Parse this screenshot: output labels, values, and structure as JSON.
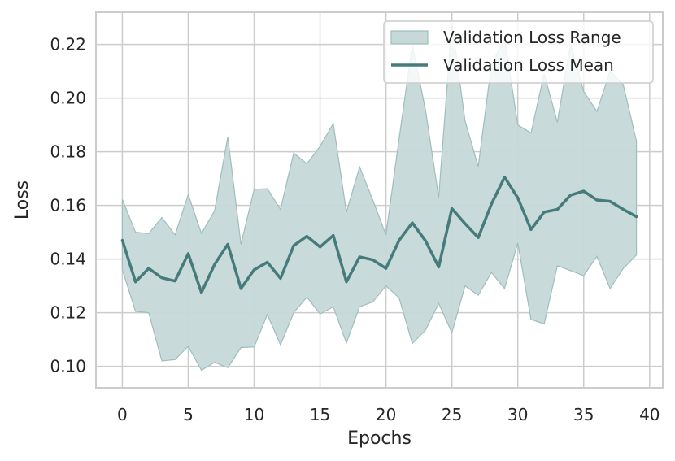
{
  "chart_data": {
    "type": "area",
    "title": "",
    "xlabel": "Epochs",
    "ylabel": "Loss",
    "xlim": [
      -2,
      41
    ],
    "ylim": [
      0.092,
      0.232
    ],
    "xticks": [
      0,
      5,
      10,
      15,
      20,
      25,
      30,
      35,
      40
    ],
    "yticks": [
      0.1,
      0.12,
      0.14,
      0.16,
      0.18,
      0.2,
      0.22
    ],
    "grid": true,
    "legend_position": "upper-right",
    "colors": {
      "line": "#457b7a",
      "fill": "#c6d8d8",
      "fill_edge": "#9fbdbd",
      "grid": "#cccccc",
      "spine": "#cccccc"
    },
    "x": [
      0,
      1,
      2,
      3,
      4,
      5,
      6,
      7,
      8,
      9,
      10,
      11,
      12,
      13,
      14,
      15,
      16,
      17,
      18,
      19,
      20,
      21,
      22,
      23,
      24,
      25,
      26,
      27,
      28,
      29,
      30,
      31,
      32,
      33,
      34,
      35,
      36,
      37,
      38,
      39
    ],
    "series": [
      {
        "name": "Validation Loss Mean",
        "kind": "line",
        "values": [
          0.147,
          0.1315,
          0.1365,
          0.133,
          0.1318,
          0.142,
          0.1275,
          0.138,
          0.1455,
          0.129,
          0.136,
          0.1388,
          0.1328,
          0.145,
          0.1485,
          0.1445,
          0.1488,
          0.1315,
          0.1408,
          0.1397,
          0.1365,
          0.147,
          0.1535,
          0.1468,
          0.137,
          0.1588,
          0.1532,
          0.148,
          0.1605,
          0.1705,
          0.1628,
          0.151,
          0.1575,
          0.1585,
          0.1638,
          0.1653,
          0.162,
          0.1615,
          0.1585,
          0.1558
        ]
      },
      {
        "name": "Validation Loss Range",
        "kind": "band",
        "lower": [
          0.136,
          0.1205,
          0.12,
          0.102,
          0.1025,
          0.1075,
          0.0985,
          0.1015,
          0.0995,
          0.107,
          0.1072,
          0.1193,
          0.108,
          0.12,
          0.1258,
          0.1195,
          0.1222,
          0.1087,
          0.1222,
          0.124,
          0.13,
          0.1255,
          0.1085,
          0.1135,
          0.1235,
          0.1125,
          0.13,
          0.1265,
          0.135,
          0.129,
          0.146,
          0.1175,
          0.1158,
          0.1375,
          0.1357,
          0.1338,
          0.141,
          0.129,
          0.1365,
          0.1415
        ],
        "upper": [
          0.1622,
          0.15,
          0.1495,
          0.1555,
          0.149,
          0.164,
          0.1495,
          0.158,
          0.1855,
          0.1455,
          0.166,
          0.1662,
          0.1585,
          0.1795,
          0.1755,
          0.182,
          0.1905,
          0.1575,
          0.1743,
          0.162,
          0.149,
          0.185,
          0.2198,
          0.1955,
          0.163,
          0.228,
          0.1915,
          0.1745,
          0.2125,
          0.222,
          0.19,
          0.187,
          0.209,
          0.191,
          0.22,
          0.2025,
          0.195,
          0.21,
          0.205,
          0.184
        ]
      }
    ]
  }
}
